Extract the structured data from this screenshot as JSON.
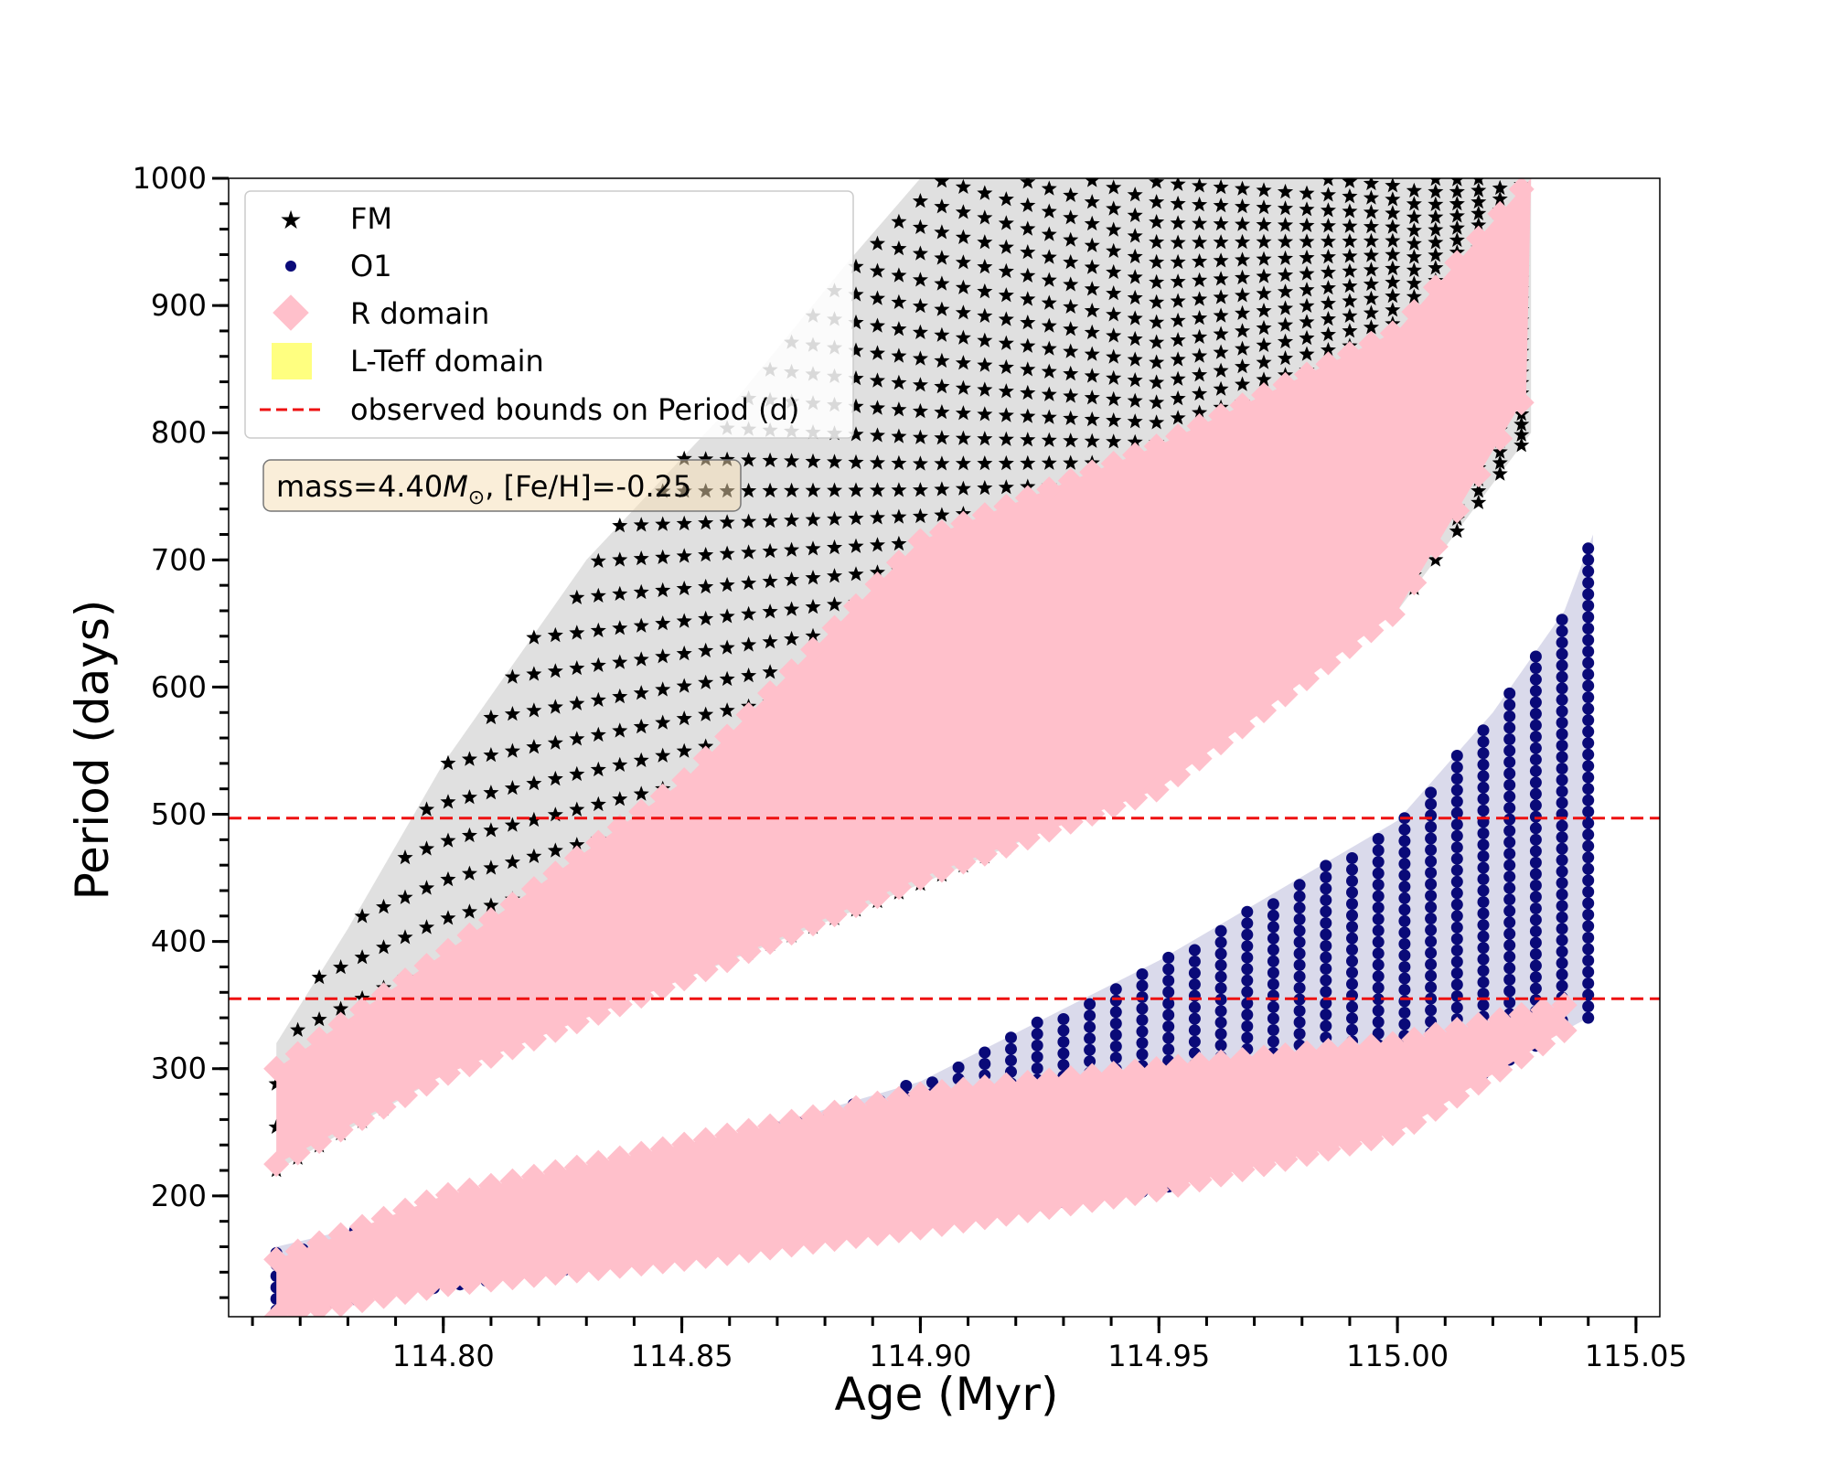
{
  "chart_data": {
    "type": "scatter",
    "title": "",
    "xlabel": "Age (Myr)",
    "ylabel": "Period (days)",
    "xlim": [
      114.755,
      115.055
    ],
    "ylim": [
      105,
      1000
    ],
    "x_ticks": [
      114.8,
      114.85,
      114.9,
      114.95,
      115.0,
      115.05
    ],
    "x_tick_labels": [
      "114.80",
      "114.85",
      "114.90",
      "114.95",
      "115.00",
      "115.05"
    ],
    "y_ticks": [
      200,
      300,
      400,
      500,
      600,
      700,
      800,
      900,
      1000
    ],
    "y_tick_labels": [
      "200",
      "300",
      "400",
      "500",
      "600",
      "700",
      "800",
      "900",
      "1000"
    ],
    "x_minor_step": 0.01,
    "y_minor_step": 20,
    "colors": {
      "fm": "#000000",
      "o1": "#0a0a78",
      "r_domain": "#ffc0cb",
      "lteff_domain": "#ffff80",
      "bounds": "#ee1111"
    },
    "series": [
      {
        "name": "FM",
        "marker": "star",
        "age_range": [
          114.765,
          115.028
        ],
        "period_low": [
          [
            114.765,
            220
          ],
          [
            114.8,
            295
          ],
          [
            114.85,
            370
          ],
          [
            114.9,
            445
          ],
          [
            114.95,
            525
          ],
          [
            115.0,
            660
          ],
          [
            115.028,
            800
          ]
        ],
        "period_high": [
          [
            114.765,
            320
          ],
          [
            114.78,
            410
          ],
          [
            114.8,
            540
          ],
          [
            114.83,
            700
          ],
          [
            114.86,
            820
          ],
          [
            114.885,
            935
          ],
          [
            114.9,
            1000
          ],
          [
            115.028,
            1000
          ]
        ]
      },
      {
        "name": "O1",
        "marker": "circle",
        "age_range": [
          114.765,
          115.045
        ],
        "period_low": [
          [
            114.765,
            110
          ],
          [
            114.85,
            155
          ],
          [
            114.95,
            205
          ],
          [
            115.0,
            260
          ],
          [
            115.04,
            340
          ]
        ],
        "period_high": [
          [
            114.765,
            160
          ],
          [
            114.85,
            235
          ],
          [
            114.9,
            290
          ],
          [
            114.95,
            385
          ],
          [
            115.0,
            495
          ],
          [
            115.02,
            580
          ],
          [
            115.035,
            660
          ],
          [
            115.041,
            720
          ]
        ]
      },
      {
        "name": "R domain",
        "marker": "diamond",
        "bands": [
          {
            "lower": [
              [
                114.765,
                225
              ],
              [
                114.8,
                295
              ],
              [
                114.85,
                370
              ],
              [
                114.9,
                450
              ],
              [
                114.95,
                520
              ],
              [
                115.0,
                660
              ],
              [
                115.027,
                830
              ]
            ],
            "upper": [
              [
                114.765,
                300
              ],
              [
                114.8,
                390
              ],
              [
                114.85,
                525
              ],
              [
                114.9,
                715
              ],
              [
                114.95,
                790
              ],
              [
                115.0,
                880
              ],
              [
                115.028,
                1000
              ]
            ]
          },
          {
            "lower": [
              [
                114.765,
                105
              ],
              [
                114.8,
                130
              ],
              [
                114.85,
                150
              ],
              [
                114.9,
                175
              ],
              [
                114.95,
                205
              ],
              [
                115.0,
                250
              ],
              [
                115.035,
                330
              ]
            ],
            "upper": [
              [
                114.765,
                150
              ],
              [
                114.8,
                200
              ],
              [
                114.85,
                240
              ],
              [
                114.9,
                280
              ],
              [
                114.95,
                300
              ],
              [
                115.0,
                320
              ],
              [
                115.035,
                350
              ]
            ]
          }
        ]
      },
      {
        "name": "L-Teff domain",
        "marker": "square",
        "points": []
      }
    ],
    "reference_lines": [
      {
        "name": "observed bounds on Period (d)",
        "style": "dashed",
        "y": 355
      },
      {
        "name": "observed bounds on Period (d)",
        "style": "dashed",
        "y": 497
      }
    ],
    "legend": {
      "position": "top-left",
      "entries": [
        "FM",
        "O1",
        "R domain",
        "L-Teff domain",
        "observed bounds on Period (d)"
      ]
    },
    "annotation": {
      "prefix": "mass=4.40",
      "symbol": "M",
      "subscript": "⊙",
      "suffix": ", [Fe/H]=-0.25"
    },
    "grid": false
  }
}
